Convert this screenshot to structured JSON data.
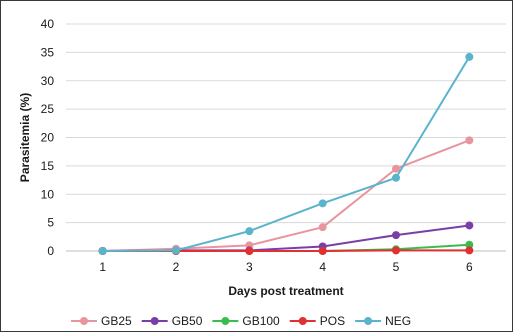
{
  "chart_data": {
    "type": "line",
    "title": "",
    "xlabel": "Days post treatment",
    "ylabel": "Parasitemia (%)",
    "x": [
      1,
      2,
      3,
      4,
      5,
      6
    ],
    "xticks": [
      "1",
      "2",
      "3",
      "4",
      "5",
      "6"
    ],
    "ylim": [
      0,
      40
    ],
    "yticks": [
      "0",
      "5",
      "10",
      "15",
      "20",
      "25",
      "30",
      "35",
      "40"
    ],
    "grid": "horizontal",
    "legend": "bottom",
    "series": [
      {
        "name": "GB25",
        "color": "#e8959e",
        "values": [
          0,
          0.4,
          1.0,
          4.2,
          14.5,
          19.5
        ]
      },
      {
        "name": "GB50",
        "color": "#7a3ea8",
        "values": [
          0,
          0.1,
          0.1,
          0.8,
          2.8,
          4.5
        ]
      },
      {
        "name": "GB100",
        "color": "#3bbd4e",
        "values": [
          0,
          0,
          0,
          0,
          0.3,
          1.1
        ]
      },
      {
        "name": "POS",
        "color": "#e03030",
        "values": [
          0,
          0,
          0,
          0,
          0.1,
          0.1
        ]
      },
      {
        "name": "NEG",
        "color": "#5ab4cc",
        "values": [
          0,
          0.1,
          3.5,
          8.4,
          12.9,
          34.2
        ]
      }
    ]
  }
}
